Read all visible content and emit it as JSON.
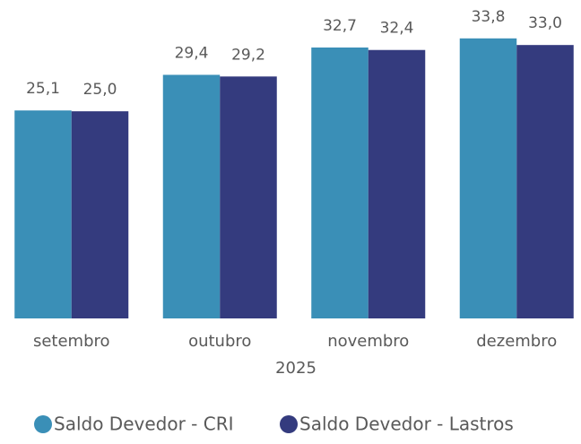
{
  "chart_data": {
    "type": "bar",
    "categories": [
      "setembro",
      "outubro",
      "novembro",
      "dezembro"
    ],
    "xlabel": "2025",
    "series": [
      {
        "name": "Saldo Devedor - CRI",
        "color": "#3a8fb7",
        "values": [
          25.1,
          29.4,
          32.7,
          33.8
        ],
        "value_labels": [
          "25,1",
          "29,4",
          "32,7",
          "33,8"
        ]
      },
      {
        "name": "Saldo Devedor - Lastros",
        "color": "#343b7e",
        "values": [
          25.0,
          29.2,
          32.4,
          33.0
        ],
        "value_labels": [
          "25,0",
          "29,2",
          "32,4",
          "33,0"
        ]
      }
    ],
    "ylim": [
      0,
      38
    ],
    "legend": "bottom"
  }
}
